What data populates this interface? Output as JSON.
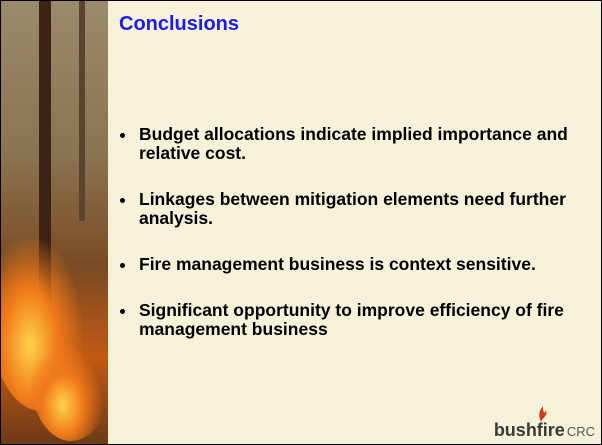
{
  "slide": {
    "title": "Conclusions",
    "bullets": [
      "Budget allocations indicate implied importance and relative cost.",
      "Linkages between mitigation elements need further analysis.",
      "Fire management business is context sensitive.",
      "Significant opportunity to improve efficiency of fire management business"
    ],
    "logo": {
      "name": "bushfire",
      "suffix": "CRC"
    }
  }
}
